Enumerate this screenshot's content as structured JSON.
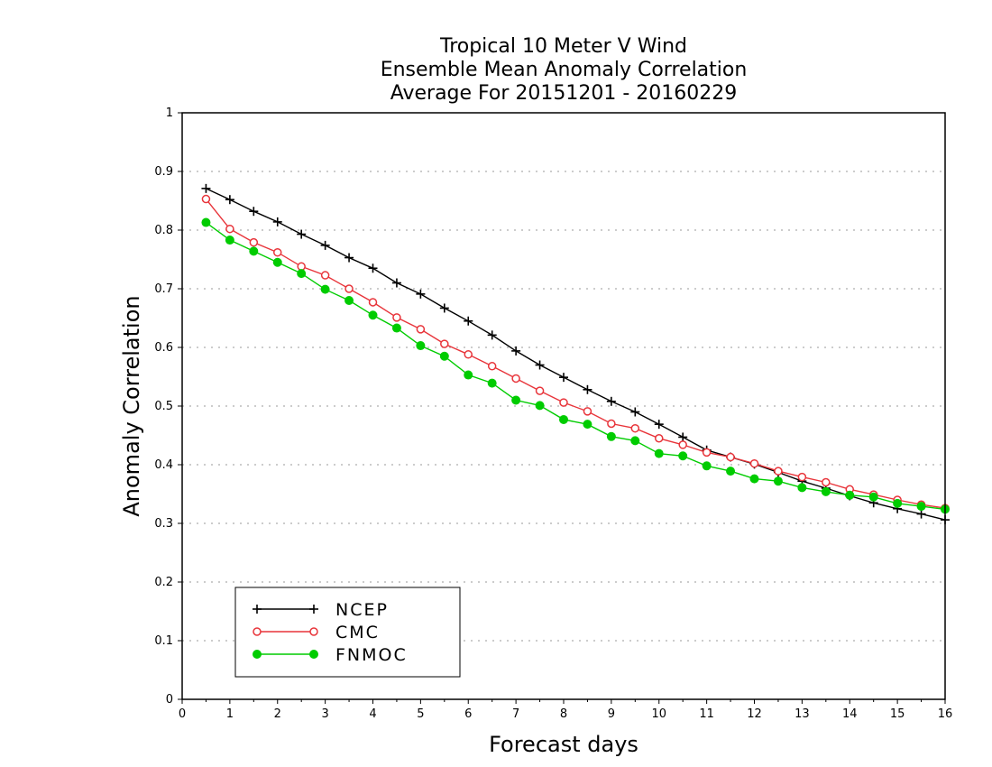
{
  "chart_data": {
    "type": "line",
    "title": [
      "Tropical 10 Meter V Wind",
      "Ensemble Mean Anomaly Correlation",
      "Average For 20151201 - 20160229"
    ],
    "xlabel": "Forecast days",
    "ylabel": "Anomaly Correlation",
    "xlim": [
      0,
      16
    ],
    "ylim": [
      0,
      1
    ],
    "xticks": [
      "0",
      "1",
      "2",
      "3",
      "4",
      "5",
      "6",
      "7",
      "8",
      "9",
      "10",
      "11",
      "12",
      "13",
      "14",
      "15",
      "16"
    ],
    "yticks": [
      "0",
      "0.1",
      "0.2",
      "0.3",
      "0.4",
      "0.5",
      "0.6",
      "0.7",
      "0.8",
      "0.9",
      "1"
    ],
    "grid": true,
    "legend_position": "bottom-left",
    "x": [
      0.5,
      1,
      1.5,
      2,
      2.5,
      3,
      3.5,
      4,
      4.5,
      5,
      5.5,
      6,
      6.5,
      7,
      7.5,
      8,
      8.5,
      9,
      9.5,
      10,
      10.5,
      11,
      11.5,
      12,
      12.5,
      13,
      13.5,
      14,
      14.5,
      15,
      15.5,
      16
    ],
    "series": [
      {
        "name": "NCEP",
        "color": "#000000",
        "marker": "plus",
        "values": [
          0.871,
          0.852,
          0.832,
          0.814,
          0.793,
          0.774,
          0.753,
          0.735,
          0.71,
          0.691,
          0.667,
          0.645,
          0.621,
          0.594,
          0.57,
          0.549,
          0.528,
          0.508,
          0.49,
          0.469,
          0.447,
          0.425,
          0.413,
          0.401,
          0.387,
          0.372,
          0.36,
          0.347,
          0.335,
          0.325,
          0.316,
          0.306
        ]
      },
      {
        "name": "CMC",
        "color": "#e8343a",
        "marker": "open-circle",
        "values": [
          0.853,
          0.802,
          0.779,
          0.762,
          0.738,
          0.723,
          0.7,
          0.677,
          0.651,
          0.631,
          0.606,
          0.588,
          0.568,
          0.547,
          0.526,
          0.506,
          0.491,
          0.47,
          0.462,
          0.445,
          0.434,
          0.421,
          0.413,
          0.402,
          0.389,
          0.379,
          0.37,
          0.358,
          0.349,
          0.34,
          0.332,
          0.326
        ]
      },
      {
        "name": "FNMOC",
        "color": "#00cc00",
        "marker": "filled-circle",
        "values": [
          0.813,
          0.783,
          0.764,
          0.745,
          0.726,
          0.699,
          0.68,
          0.655,
          0.633,
          0.603,
          0.585,
          0.553,
          0.539,
          0.51,
          0.501,
          0.477,
          0.469,
          0.448,
          0.441,
          0.419,
          0.415,
          0.398,
          0.389,
          0.376,
          0.372,
          0.361,
          0.354,
          0.348,
          0.345,
          0.334,
          0.329,
          0.324
        ]
      }
    ]
  }
}
